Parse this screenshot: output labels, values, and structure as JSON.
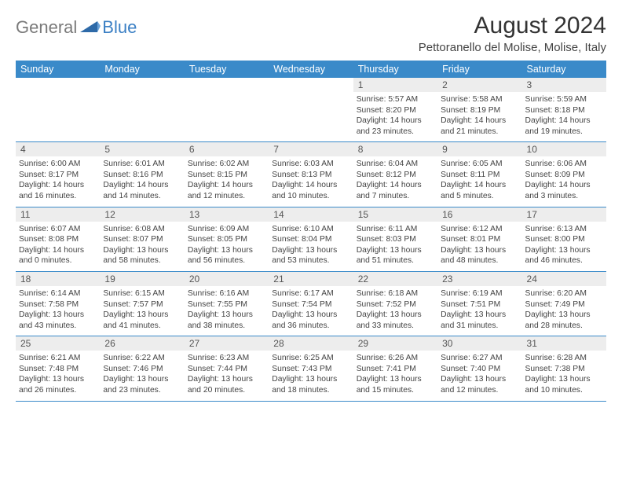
{
  "logo": {
    "gray": "General",
    "blue": "Blue"
  },
  "title": "August 2024",
  "location": "Pettoranello del Molise, Molise, Italy",
  "colors": {
    "header_bg": "#3a8ac9",
    "header_text": "#ffffff",
    "daynum_bg": "#ededed",
    "body_text": "#444444",
    "rule": "#3a8ac9",
    "logo_gray": "#7a7a7a",
    "logo_blue": "#3a7fc4"
  },
  "day_names": [
    "Sunday",
    "Monday",
    "Tuesday",
    "Wednesday",
    "Thursday",
    "Friday",
    "Saturday"
  ],
  "weeks": [
    [
      null,
      null,
      null,
      null,
      {
        "n": "1",
        "sr": "5:57 AM",
        "ss": "8:20 PM",
        "dl": "14 hours and 23 minutes."
      },
      {
        "n": "2",
        "sr": "5:58 AM",
        "ss": "8:19 PM",
        "dl": "14 hours and 21 minutes."
      },
      {
        "n": "3",
        "sr": "5:59 AM",
        "ss": "8:18 PM",
        "dl": "14 hours and 19 minutes."
      }
    ],
    [
      {
        "n": "4",
        "sr": "6:00 AM",
        "ss": "8:17 PM",
        "dl": "14 hours and 16 minutes."
      },
      {
        "n": "5",
        "sr": "6:01 AM",
        "ss": "8:16 PM",
        "dl": "14 hours and 14 minutes."
      },
      {
        "n": "6",
        "sr": "6:02 AM",
        "ss": "8:15 PM",
        "dl": "14 hours and 12 minutes."
      },
      {
        "n": "7",
        "sr": "6:03 AM",
        "ss": "8:13 PM",
        "dl": "14 hours and 10 minutes."
      },
      {
        "n": "8",
        "sr": "6:04 AM",
        "ss": "8:12 PM",
        "dl": "14 hours and 7 minutes."
      },
      {
        "n": "9",
        "sr": "6:05 AM",
        "ss": "8:11 PM",
        "dl": "14 hours and 5 minutes."
      },
      {
        "n": "10",
        "sr": "6:06 AM",
        "ss": "8:09 PM",
        "dl": "14 hours and 3 minutes."
      }
    ],
    [
      {
        "n": "11",
        "sr": "6:07 AM",
        "ss": "8:08 PM",
        "dl": "14 hours and 0 minutes."
      },
      {
        "n": "12",
        "sr": "6:08 AM",
        "ss": "8:07 PM",
        "dl": "13 hours and 58 minutes."
      },
      {
        "n": "13",
        "sr": "6:09 AM",
        "ss": "8:05 PM",
        "dl": "13 hours and 56 minutes."
      },
      {
        "n": "14",
        "sr": "6:10 AM",
        "ss": "8:04 PM",
        "dl": "13 hours and 53 minutes."
      },
      {
        "n": "15",
        "sr": "6:11 AM",
        "ss": "8:03 PM",
        "dl": "13 hours and 51 minutes."
      },
      {
        "n": "16",
        "sr": "6:12 AM",
        "ss": "8:01 PM",
        "dl": "13 hours and 48 minutes."
      },
      {
        "n": "17",
        "sr": "6:13 AM",
        "ss": "8:00 PM",
        "dl": "13 hours and 46 minutes."
      }
    ],
    [
      {
        "n": "18",
        "sr": "6:14 AM",
        "ss": "7:58 PM",
        "dl": "13 hours and 43 minutes."
      },
      {
        "n": "19",
        "sr": "6:15 AM",
        "ss": "7:57 PM",
        "dl": "13 hours and 41 minutes."
      },
      {
        "n": "20",
        "sr": "6:16 AM",
        "ss": "7:55 PM",
        "dl": "13 hours and 38 minutes."
      },
      {
        "n": "21",
        "sr": "6:17 AM",
        "ss": "7:54 PM",
        "dl": "13 hours and 36 minutes."
      },
      {
        "n": "22",
        "sr": "6:18 AM",
        "ss": "7:52 PM",
        "dl": "13 hours and 33 minutes."
      },
      {
        "n": "23",
        "sr": "6:19 AM",
        "ss": "7:51 PM",
        "dl": "13 hours and 31 minutes."
      },
      {
        "n": "24",
        "sr": "6:20 AM",
        "ss": "7:49 PM",
        "dl": "13 hours and 28 minutes."
      }
    ],
    [
      {
        "n": "25",
        "sr": "6:21 AM",
        "ss": "7:48 PM",
        "dl": "13 hours and 26 minutes."
      },
      {
        "n": "26",
        "sr": "6:22 AM",
        "ss": "7:46 PM",
        "dl": "13 hours and 23 minutes."
      },
      {
        "n": "27",
        "sr": "6:23 AM",
        "ss": "7:44 PM",
        "dl": "13 hours and 20 minutes."
      },
      {
        "n": "28",
        "sr": "6:25 AM",
        "ss": "7:43 PM",
        "dl": "13 hours and 18 minutes."
      },
      {
        "n": "29",
        "sr": "6:26 AM",
        "ss": "7:41 PM",
        "dl": "13 hours and 15 minutes."
      },
      {
        "n": "30",
        "sr": "6:27 AM",
        "ss": "7:40 PM",
        "dl": "13 hours and 12 minutes."
      },
      {
        "n": "31",
        "sr": "6:28 AM",
        "ss": "7:38 PM",
        "dl": "13 hours and 10 minutes."
      }
    ]
  ],
  "labels": {
    "sunrise": "Sunrise:",
    "sunset": "Sunset:",
    "daylight": "Daylight:"
  }
}
